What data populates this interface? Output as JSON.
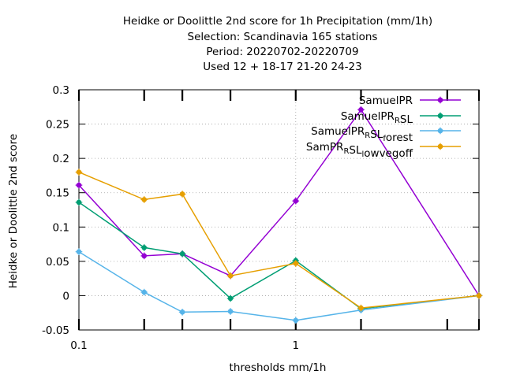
{
  "chart_data": {
    "type": "line",
    "title_lines": [
      "Heidke or Doolittle 2nd score  for 1h Precipitation (mm/1h)",
      "Selection: Scandinavia    165 stations",
      "Period: 20220702-20220709",
      "Used  12 + 18-17 21-20 24-23"
    ],
    "xlabel": "thresholds mm/1h",
    "ylabel": "Heidke or Doolittle 2nd score",
    "x_scale": "log",
    "xlim": [
      0.1,
      7
    ],
    "ylim": [
      -0.05,
      0.3
    ],
    "x_ticks": [
      {
        "value": 0.1,
        "label": "0.1"
      },
      {
        "value": 1,
        "label": "1"
      }
    ],
    "x_minor_ticks": [
      0.2,
      0.3,
      0.5,
      2,
      5,
      7
    ],
    "y_ticks": [
      {
        "value": -0.05,
        "label": "-0.05"
      },
      {
        "value": 0,
        "label": "0"
      },
      {
        "value": 0.05,
        "label": "0.05"
      },
      {
        "value": 0.1,
        "label": "0.1"
      },
      {
        "value": 0.15,
        "label": "0.15"
      },
      {
        "value": 0.2,
        "label": "0.2"
      },
      {
        "value": 0.25,
        "label": "0.25"
      },
      {
        "value": 0.3,
        "label": "0.3"
      }
    ],
    "grid": true,
    "legend_position": "top-right",
    "x": [
      0.1,
      0.2,
      0.3,
      0.5,
      1,
      2,
      7
    ],
    "series": [
      {
        "name": "SamuelPR",
        "legend_main": "SamuelPR",
        "legend_sub": "",
        "legend_tail": "",
        "color": "#9400d3",
        "values": [
          0.161,
          0.058,
          0.061,
          0.029,
          0.138,
          0.271,
          0.0
        ]
      },
      {
        "name": "SamuelPR_RSL",
        "legend_main": "SamuelPR",
        "legend_sub": "R",
        "legend_tail": "SL",
        "color": "#009e73",
        "values": [
          0.136,
          0.07,
          0.061,
          -0.004,
          0.051,
          -0.019,
          0.0
        ]
      },
      {
        "name": "SamuelPR_RSL_forest",
        "legend_main": "SamuelPR",
        "legend_sub": "R",
        "legend_tail": "SL",
        "legend_sub2": "f",
        "legend_tail2": "orest",
        "color": "#56b4e9",
        "values": [
          0.064,
          0.005,
          -0.024,
          -0.023,
          -0.036,
          -0.021,
          0.0
        ]
      },
      {
        "name": "SamPR_RSL_lowvegoff",
        "legend_main": "SamPR",
        "legend_sub": "R",
        "legend_tail": "SL",
        "legend_sub2": "l",
        "legend_tail2": "owvegoff",
        "color": "#e69f00",
        "values": [
          0.18,
          0.14,
          0.148,
          0.029,
          0.047,
          -0.018,
          0.0
        ]
      }
    ]
  }
}
